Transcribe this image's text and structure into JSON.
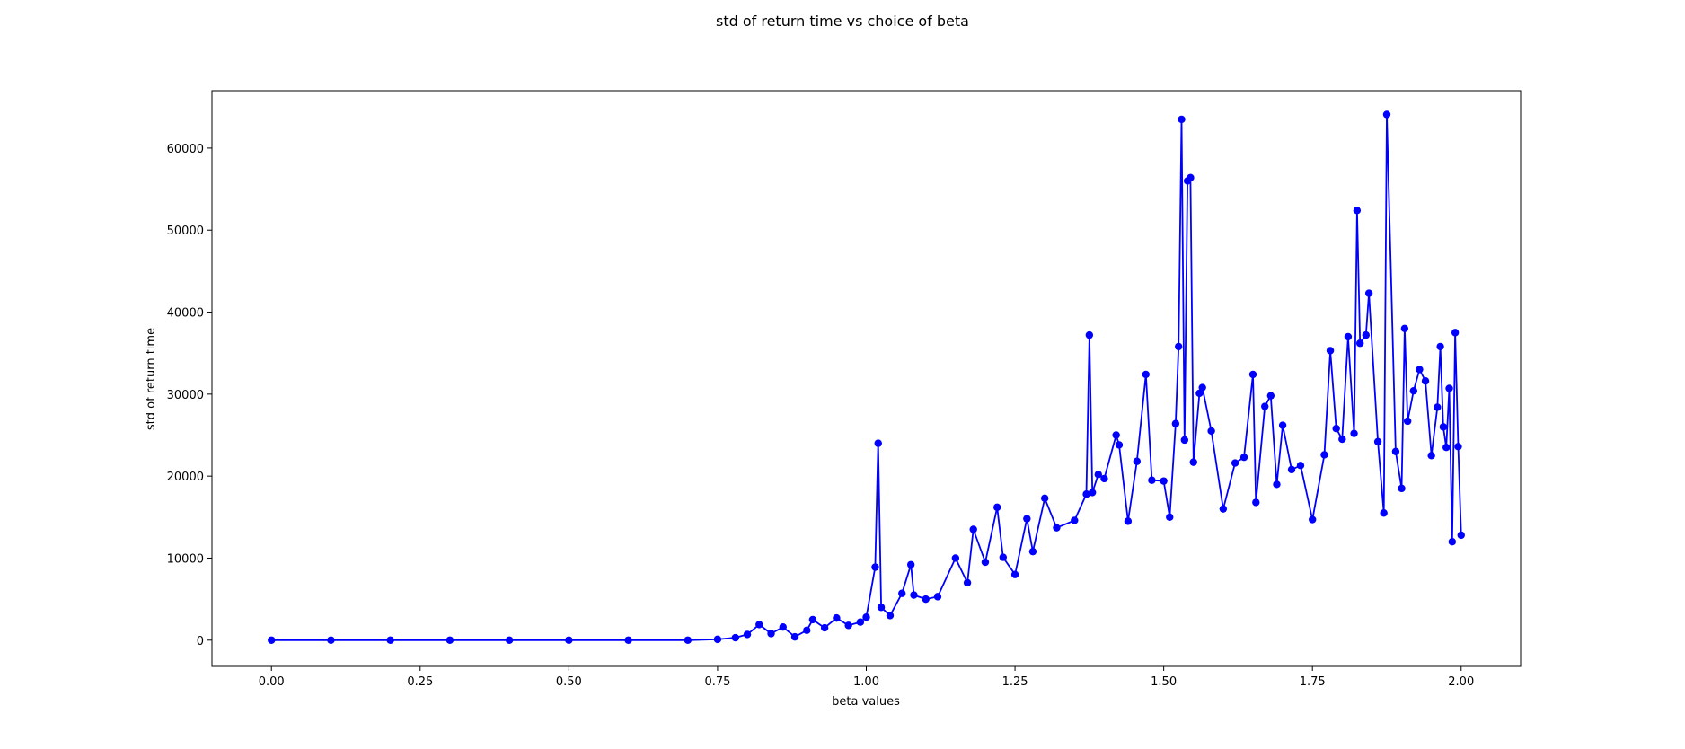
{
  "chart_data": {
    "type": "line",
    "title": "std of return time vs choice of beta",
    "xlabel": "beta values",
    "ylabel": "std of return time",
    "xlim": [
      -0.1,
      2.1
    ],
    "ylim": [
      -3200,
      67000
    ],
    "xticks": [
      0.0,
      0.25,
      0.5,
      0.75,
      1.0,
      1.25,
      1.5,
      1.75,
      2.0
    ],
    "xtick_labels": [
      "0.00",
      "0.25",
      "0.50",
      "0.75",
      "1.00",
      "1.25",
      "1.50",
      "1.75",
      "2.00"
    ],
    "yticks": [
      0,
      10000,
      20000,
      30000,
      40000,
      50000,
      60000
    ],
    "ytick_labels": [
      "0",
      "10000",
      "20000",
      "30000",
      "40000",
      "50000",
      "60000"
    ],
    "grid": false,
    "legend": "none",
    "series": [
      {
        "color": "#0000ff",
        "marker": "circle",
        "x": [
          0.0,
          0.1,
          0.2,
          0.3,
          0.4,
          0.5,
          0.6,
          0.7,
          0.75,
          0.78,
          0.8,
          0.82,
          0.84,
          0.86,
          0.88,
          0.9,
          0.91,
          0.93,
          0.95,
          0.97,
          0.99,
          1.0,
          1.015,
          1.02,
          1.025,
          1.04,
          1.06,
          1.075,
          1.08,
          1.1,
          1.12,
          1.15,
          1.17,
          1.18,
          1.2,
          1.22,
          1.23,
          1.25,
          1.27,
          1.28,
          1.3,
          1.32,
          1.35,
          1.37,
          1.375,
          1.38,
          1.39,
          1.4,
          1.42,
          1.425,
          1.44,
          1.455,
          1.47,
          1.48,
          1.5,
          1.51,
          1.52,
          1.525,
          1.53,
          1.535,
          1.54,
          1.545,
          1.55,
          1.56,
          1.565,
          1.58,
          1.6,
          1.62,
          1.635,
          1.65,
          1.655,
          1.67,
          1.68,
          1.69,
          1.7,
          1.715,
          1.73,
          1.75,
          1.77,
          1.78,
          1.79,
          1.8,
          1.81,
          1.82,
          1.825,
          1.83,
          1.84,
          1.845,
          1.86,
          1.87,
          1.875,
          1.89,
          1.9,
          1.905,
          1.91,
          1.92,
          1.93,
          1.94,
          1.95,
          1.96,
          1.965,
          1.97,
          1.975,
          1.98,
          1.985,
          1.99,
          1.995,
          2.0
        ],
        "y": [
          0,
          0,
          0,
          0,
          0,
          0,
          0,
          0,
          100,
          300,
          700,
          1900,
          800,
          1600,
          400,
          1200,
          2500,
          1500,
          2700,
          1800,
          2200,
          2800,
          8900,
          24000,
          4000,
          3000,
          5700,
          9200,
          5500,
          5000,
          5300,
          10000,
          7000,
          13500,
          9500,
          16200,
          10100,
          8000,
          14800,
          10800,
          17300,
          13700,
          14600,
          17800,
          37200,
          18000,
          20200,
          19700,
          25000,
          23800,
          14500,
          21800,
          32400,
          19500,
          19400,
          15000,
          26400,
          35800,
          63500,
          24400,
          56000,
          56400,
          21700,
          30100,
          30800,
          25500,
          16000,
          21600,
          22300,
          32400,
          16800,
          28500,
          29800,
          19000,
          26200,
          20800,
          21300,
          14700,
          22600,
          35300,
          25800,
          24500,
          37000,
          25200,
          52400,
          36200,
          37200,
          42300,
          24200,
          15500,
          64100,
          23000,
          18500,
          38000,
          26700,
          30400,
          33000,
          31600,
          22500,
          28400,
          35800,
          26000,
          23500,
          30700,
          12000,
          37500,
          23600,
          12800
        ]
      }
    ]
  }
}
